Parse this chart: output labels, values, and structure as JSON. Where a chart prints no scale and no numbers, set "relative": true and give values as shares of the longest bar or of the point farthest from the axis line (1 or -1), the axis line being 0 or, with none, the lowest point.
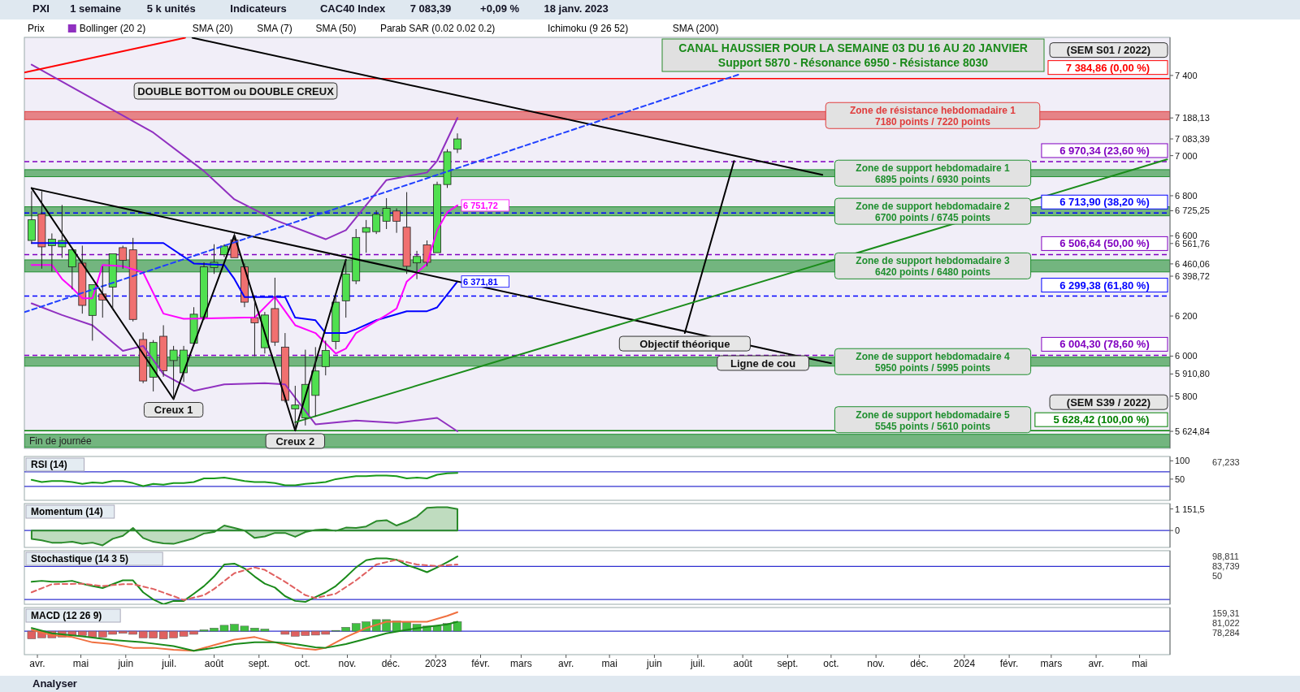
{
  "chart_data": [
    {
      "type": "candlestick",
      "title": "CANAL HAUSSIER POUR LA SEMAINE 03 DU 16 AU 20 JANVIER",
      "subtitle": "Support 5870 - Résonance 6950 - Résistance 8030",
      "legend": "top left",
      "tick_labels": "y",
      "x": [
        "2022-03-28",
        "2022-04-04",
        "2022-04-11",
        "2022-04-18",
        "2022-04-25",
        "2022-05-02",
        "2022-05-09",
        "2022-05-16",
        "2022-05-23",
        "2022-05-30",
        "2022-06-06",
        "2022-06-13",
        "2022-06-20",
        "2022-06-27",
        "2022-07-04",
        "2022-07-11",
        "2022-07-18",
        "2022-07-25",
        "2022-08-01",
        "2022-08-08",
        "2022-08-15",
        "2022-08-22",
        "2022-08-29",
        "2022-09-05",
        "2022-09-12",
        "2022-09-19",
        "2022-09-26",
        "2022-10-03",
        "2022-10-10",
        "2022-10-17",
        "2022-10-24",
        "2022-10-31",
        "2022-11-07",
        "2022-11-14",
        "2022-11-21",
        "2022-11-28",
        "2022-12-05",
        "2022-12-12",
        "2022-12-19",
        "2022-12-26",
        "2023-01-02",
        "2023-01-09",
        "2023-01-16"
      ],
      "ohlc": [
        [
          6577,
          6823,
          6560,
          6680
        ],
        [
          6708,
          6823,
          6436,
          6545
        ],
        [
          6551,
          6612,
          6423,
          6583
        ],
        [
          6545,
          6754,
          6490,
          6577
        ],
        [
          6445,
          6538,
          6333,
          6530
        ],
        [
          6464,
          6551,
          6212,
          6253
        ],
        [
          6203,
          6359,
          6077,
          6356
        ],
        [
          6310,
          6449,
          6192,
          6280
        ],
        [
          6344,
          6515,
          6231,
          6510
        ],
        [
          6541,
          6551,
          6436,
          6478
        ],
        [
          6530,
          6590,
          6173,
          6183
        ],
        [
          6083,
          6118,
          5865,
          5876
        ],
        [
          5895,
          6080,
          5824,
          6068
        ],
        [
          6099,
          6154,
          5897,
          5927
        ],
        [
          5978,
          6051,
          5782,
          6030
        ],
        [
          5917,
          6051,
          5872,
          6030
        ],
        [
          6064,
          6244,
          6058,
          6209
        ],
        [
          6195,
          6468,
          6180,
          6445
        ],
        [
          6442,
          6558,
          6410,
          6468
        ],
        [
          6506,
          6558,
          6494,
          6549
        ],
        [
          6580,
          6615,
          6487,
          6491
        ],
        [
          6445,
          6462,
          6244,
          6269
        ],
        [
          6192,
          6295,
          6000,
          6166
        ],
        [
          6042,
          6220,
          6013,
          6205
        ],
        [
          6237,
          6391,
          6051,
          6070
        ],
        [
          6045,
          6115,
          5769,
          5779
        ],
        [
          5737,
          5852,
          5628,
          5756
        ],
        [
          5692,
          6032,
          5654,
          5859
        ],
        [
          5804,
          6045,
          5699,
          5926
        ],
        [
          5948,
          6077,
          5904,
          6028
        ],
        [
          6073,
          6295,
          6034,
          6269
        ],
        [
          6276,
          6481,
          6192,
          6410
        ],
        [
          6375,
          6634,
          6359,
          6592
        ],
        [
          6618,
          6679,
          6516,
          6641
        ],
        [
          6621,
          6727,
          6609,
          6707
        ],
        [
          6673,
          6788,
          6634,
          6737
        ],
        [
          6724,
          6737,
          6615,
          6673
        ],
        [
          6643,
          6818,
          6410,
          6448
        ],
        [
          6465,
          6525,
          6384,
          6497
        ],
        [
          6555,
          6577,
          6448,
          6468
        ],
        [
          6516,
          6870,
          6513,
          6856
        ],
        [
          6856,
          7032,
          6839,
          7019
        ],
        [
          7032,
          7111,
          7013,
          7083.39
        ]
      ],
      "xlim": [
        "2022-03-23",
        "2024-05-22"
      ],
      "ylim": [
        5540,
        7590
      ],
      "yticks": [
        {
          "value": 5624.84,
          "label": "5 624,84"
        },
        {
          "value": 5800,
          "label": "5 800"
        },
        {
          "value": 5910.8,
          "label": "5 910,80"
        },
        {
          "value": 6000,
          "label": "6 000"
        },
        {
          "value": 6200,
          "label": "6 200"
        },
        {
          "value": 6398.72,
          "label": "6 398,72"
        },
        {
          "value": 6460.06,
          "label": "6 460,06"
        },
        {
          "value": 6561.76,
          "label": "6 561,76"
        },
        {
          "value": 6600,
          "label": "6 600"
        },
        {
          "value": 6725.25,
          "label": "6 725,25"
        },
        {
          "value": 6800,
          "label": "6 800"
        },
        {
          "value": 7000,
          "label": "7 000"
        },
        {
          "value": 7083.39,
          "label": "7 083,39"
        },
        {
          "value": 7188.13,
          "label": "7 188,13"
        },
        {
          "value": 7400,
          "label": "7 400"
        }
      ],
      "series": [
        {
          "type": "line",
          "name": "Bollinger (20 2)",
          "color": "#9030c0",
          "x": [
            "2022-03-28",
            "2022-06-20",
            "2022-07-25",
            "2022-08-15",
            "2022-09-12",
            "2022-10-17",
            "2022-10-31",
            "2022-11-28",
            "2022-12-26",
            "2023-01-02",
            "2023-01-16"
          ],
          "values": [
            7454,
            7115,
            6923,
            6782,
            6679,
            6583,
            6628,
            6878,
            6916,
            6974,
            7188
          ]
        },
        {
          "type": "line",
          "color": "#9030c0",
          "x": [
            "2022-03-28",
            "2022-04-18",
            "2022-05-09",
            "2022-05-30",
            "2022-06-13",
            "2022-06-27",
            "2022-07-18",
            "2022-08-08",
            "2022-09-05",
            "2022-09-19",
            "2022-10-10",
            "2022-11-07",
            "2022-12-05",
            "2023-01-02",
            "2023-01-16"
          ],
          "values": [
            6263,
            6205,
            6154,
            6026,
            6051,
            5910,
            5827,
            5859,
            5865,
            5859,
            5660,
            5679,
            5667,
            5692,
            5625
          ]
        },
        {
          "type": "line",
          "color": "#0000ff",
          "x": [
            "2022-03-28",
            "2022-06-27",
            "2022-07-18",
            "2022-08-08",
            "2022-08-15",
            "2022-08-22",
            "2022-09-19",
            "2022-09-26",
            "2022-10-10",
            "2022-10-17",
            "2022-10-31",
            "2022-11-07",
            "2022-11-21",
            "2022-12-12",
            "2022-12-26",
            "2023-01-02",
            "2023-01-16"
          ],
          "values": [
            6564,
            6564,
            6462,
            6455,
            6385,
            6295,
            6295,
            6192,
            6179,
            6115,
            6115,
            6134,
            6179,
            6224,
            6224,
            6243,
            6371.81
          ],
          "value_labels": [
            null,
            null,
            null,
            null,
            null,
            null,
            null,
            null,
            null,
            null,
            null,
            null,
            null,
            null,
            null,
            null,
            "6 371,81"
          ]
        },
        {
          "type": "line",
          "color": "#ff00ff",
          "x": [
            "2022-03-28",
            "2022-04-11",
            "2022-04-18",
            "2022-04-25",
            "2022-05-02",
            "2022-05-09",
            "2022-05-16",
            "2022-05-30",
            "2022-06-13",
            "2022-06-27",
            "2022-07-11",
            "2022-08-22",
            "2022-08-29",
            "2022-09-12",
            "2022-09-26",
            "2022-10-10",
            "2022-10-24",
            "2022-10-31",
            "2022-11-07",
            "2022-11-28",
            "2022-12-05",
            "2022-12-12",
            "2022-12-26",
            "2023-01-02",
            "2023-01-09",
            "2023-01-16"
          ],
          "values": [
            6455,
            6455,
            6385,
            6340,
            6289,
            6289,
            6455,
            6449,
            6417,
            6212,
            6186,
            6192,
            6192,
            6295,
            6154,
            6115,
            6013,
            6038,
            6115,
            6205,
            6237,
            6372,
            6461,
            6628,
            6718,
            6751.72
          ],
          "value_labels": [
            null,
            null,
            null,
            null,
            null,
            null,
            null,
            null,
            null,
            null,
            null,
            null,
            null,
            null,
            null,
            null,
            null,
            null,
            null,
            null,
            null,
            null,
            null,
            null,
            null,
            "6 751,72"
          ]
        },
        {
          "type": "line",
          "color": "#000000",
          "x": [
            "2022-03-28",
            "2022-07-04",
            "2022-08-15",
            "2022-09-26",
            "2022-10-31"
          ],
          "values": [
            6838,
            5785,
            6603,
            5628,
            6481
          ]
        },
        {
          "type": "line",
          "color": "#000000",
          "x": [
            "2022-03-28",
            "2023-10-01"
          ],
          "values": [
            6838,
            5964
          ]
        },
        {
          "type": "line",
          "color": "#000000",
          "x": [
            "2022-07-17",
            "2023-09-25"
          ],
          "values": [
            7588,
            6904
          ]
        },
        {
          "type": "line",
          "color": "#000000",
          "x": [
            "2023-06-22",
            "2023-07-26"
          ],
          "values": [
            6115,
            6973
          ]
        },
        {
          "type": "line",
          "color": "#1a8c1a",
          "x": [
            "2022-09-26",
            "2024-05-20"
          ],
          "values": [
            5670,
            6981
          ]
        },
        {
          "type": "line",
          "color": "#2040ff",
          "line_style": "dashed",
          "x": [
            "2022-03-23",
            "2023-07-29"
          ],
          "values": [
            6219,
            7404
          ]
        },
        {
          "type": "line",
          "color": "#ff0000",
          "x": [
            "2022-03-23",
            "2022-07-12"
          ],
          "values": [
            7415,
            7588
          ]
        }
      ],
      "bands": [
        {
          "axis": "y",
          "from": 7180,
          "to": 7220,
          "label": "Zone de résistance hebdomadaire 1\n7180 points / 7220 points",
          "color": "#e03c3c"
        },
        {
          "axis": "y",
          "from": 6895,
          "to": 6930,
          "label": "Zone de support hebdomadaire 1\n6895 points / 6930 points",
          "color": "#1f8f2f"
        },
        {
          "axis": "y",
          "from": 6700,
          "to": 6745,
          "label": "Zone de support hebdomadaire 2\n6700 points / 6745 points",
          "color": "#1f8f2f"
        },
        {
          "axis": "y",
          "from": 6420,
          "to": 6480,
          "label": "Zone de support hebdomadaire 3\n6420 points / 6480 points",
          "color": "#1f8f2f"
        },
        {
          "axis": "y",
          "from": 5950,
          "to": 5995,
          "label": "Zone de support hebdomadaire 4\n5950 points / 5995 points",
          "color": "#1f8f2f"
        },
        {
          "axis": "y",
          "from": 5545,
          "to": 5610,
          "label": "Zone de support hebdomadaire 5\n5545 points / 5610 points",
          "color": "#1f8f2f"
        }
      ],
      "ref_lines": [
        {
          "axis": "y",
          "value": 7384.86,
          "label": "7 384,86 (0,00 %)",
          "color": "#ff0000",
          "line_style": "solid"
        },
        {
          "axis": "y",
          "value": 6970.34,
          "label": "6 970,34 (23,60 %)",
          "color": "#8000c0",
          "line_style": "dashed"
        },
        {
          "axis": "y",
          "value": 6713.9,
          "label": "6 713,90 (38,20 %)",
          "color": "#0000ff",
          "line_style": "dashed"
        },
        {
          "axis": "y",
          "value": 6506.64,
          "label": "6 506,64 (50,00 %)",
          "color": "#8000c0",
          "line_style": "dashed"
        },
        {
          "axis": "y",
          "value": 6299.38,
          "label": "6 299,38 (61,80 %)",
          "color": "#0000ff",
          "line_style": "dashed"
        },
        {
          "axis": "y",
          "value": 6004.3,
          "label": "6 004,30 (78,60 %)",
          "color": "#8000c0",
          "line_style": "dashed"
        },
        {
          "axis": "y",
          "value": 5628.42,
          "label": "5 628,42 (100,00 %)",
          "color": "#008000",
          "line_style": "solid"
        }
      ],
      "annotations": [
        "Prix",
        "SMA (20)",
        "SMA (7)",
        "SMA (50)",
        "Parab SAR (0.02 0.02 0.2)",
        "Ichimoku (9 26 52)",
        "SMA (200)",
        {
          "text": "Creux 1",
          "x": "2022-07-04",
          "y": 5785
        },
        {
          "text": "Creux 2",
          "x": "2022-09-26",
          "y": 5628
        },
        {
          "text": "Objectif théorique",
          "x": "2023-06-22",
          "y": 6115
        },
        {
          "text": "Ligne de cou",
          "x": "2023-08-15",
          "y": 6018
        },
        {
          "text": "(SEM S01 / 2022)",
          "x": "2024-05-20",
          "y": 7384.86
        },
        {
          "text": "(SEM S39 / 2022)",
          "x": "2024-05-20",
          "y": 5628.42
        },
        "DOUBLE BOTTOM ou DOUBLE CREUX",
        "Fin de journée"
      ]
    },
    {
      "type": "line",
      "title": "RSI (14)",
      "tick_labels": "y",
      "x": [
        "2022-03-28",
        "2022-04-04",
        "2022-04-11",
        "2022-04-18",
        "2022-04-25",
        "2022-05-02",
        "2022-05-09",
        "2022-05-16",
        "2022-05-23",
        "2022-05-30",
        "2022-06-06",
        "2022-06-13",
        "2022-06-20",
        "2022-06-27",
        "2022-07-04",
        "2022-07-11",
        "2022-07-18",
        "2022-07-25",
        "2022-08-01",
        "2022-08-08",
        "2022-08-15",
        "2022-08-22",
        "2022-08-29",
        "2022-09-05",
        "2022-09-12",
        "2022-09-19",
        "2022-09-26",
        "2022-10-03",
        "2022-10-10",
        "2022-10-17",
        "2022-10-24",
        "2022-10-31",
        "2022-11-07",
        "2022-11-14",
        "2022-11-21",
        "2022-11-28",
        "2022-12-05",
        "2022-12-12",
        "2022-12-19",
        "2022-12-26",
        "2023-01-02",
        "2023-01-09",
        "2023-01-16"
      ],
      "xlim": [
        "2022-03-23",
        "2024-05-22"
      ],
      "ylim": [
        -8,
        112
      ],
      "yticks": [
        50,
        100
      ],
      "annotations": [
        "67,233"
      ],
      "series": [
        {
          "color": "#1a9a1a",
          "values": [
            48,
            42,
            45,
            45,
            42,
            37,
            41,
            39,
            45,
            45,
            39,
            31,
            37,
            35,
            39,
            39,
            42,
            52,
            52,
            54,
            50,
            45,
            42,
            42,
            39,
            33,
            33,
            37,
            39,
            42,
            50,
            54,
            58,
            58,
            60,
            60,
            58,
            52,
            54,
            52,
            62,
            66,
            67.2
          ]
        }
      ],
      "ref_lines": [
        {
          "axis": "y",
          "value": 70,
          "color": "#3030d0"
        },
        {
          "axis": "y",
          "value": 30,
          "color": "#3030d0"
        }
      ]
    },
    {
      "type": "area",
      "title": "Momentum (14)",
      "tick_labels": "y",
      "x": [
        "2022-03-28",
        "2022-04-04",
        "2022-04-11",
        "2022-04-18",
        "2022-04-25",
        "2022-05-02",
        "2022-05-09",
        "2022-05-16",
        "2022-05-23",
        "2022-05-30",
        "2022-06-06",
        "2022-06-13",
        "2022-06-20",
        "2022-06-27",
        "2022-07-04",
        "2022-07-11",
        "2022-07-18",
        "2022-07-25",
        "2022-08-01",
        "2022-08-08",
        "2022-08-15",
        "2022-08-22",
        "2022-08-29",
        "2022-09-05",
        "2022-09-12",
        "2022-09-19",
        "2022-09-26",
        "2022-10-03",
        "2022-10-10",
        "2022-10-17",
        "2022-10-24",
        "2022-10-31",
        "2022-11-07",
        "2022-11-14",
        "2022-11-21",
        "2022-11-28",
        "2022-12-05",
        "2022-12-12",
        "2022-12-19",
        "2022-12-26",
        "2023-01-02",
        "2023-01-09",
        "2023-01-16"
      ],
      "xlim": [
        "2022-03-23",
        "2024-05-22"
      ],
      "ylim": [
        -905,
        1440
      ],
      "yticks": [
        0,
        {
          "value": 1151.5,
          "label": "1 151,5"
        }
      ],
      "series": [
        {
          "color": "#2a8a2a",
          "values": [
            -445,
            -525,
            -650,
            -650,
            -604,
            -714,
            -650,
            -794,
            -445,
            -287,
            139,
            -399,
            -604,
            -683,
            -714,
            -572,
            -414,
            -161,
            -82,
            267,
            139,
            -4,
            -399,
            -319,
            -130,
            -130,
            -335,
            -82,
            29,
            60,
            -20,
            155,
            139,
            218,
            503,
            551,
            267,
            472,
            740,
            1213,
            1246,
            1246,
            1151.5
          ]
        }
      ],
      "ref_lines": [
        {
          "axis": "y",
          "value": 0,
          "color": "#3030d0"
        }
      ]
    },
    {
      "type": "line",
      "title": "Stochastique (14 3 5)",
      "relative": true,
      "annotations": [
        "98,811",
        "83,739",
        "50"
      ],
      "x": [
        "2022-03-28",
        "2022-04-04",
        "2022-04-11",
        "2022-04-18",
        "2022-04-25",
        "2022-05-02",
        "2022-05-09",
        "2022-05-16",
        "2022-05-23",
        "2022-05-30",
        "2022-06-06",
        "2022-06-13",
        "2022-06-20",
        "2022-06-27",
        "2022-07-04",
        "2022-07-11",
        "2022-07-18",
        "2022-07-25",
        "2022-08-01",
        "2022-08-08",
        "2022-08-15",
        "2022-08-22",
        "2022-08-29",
        "2022-09-05",
        "2022-09-12",
        "2022-09-19",
        "2022-09-26",
        "2022-10-03",
        "2022-10-10",
        "2022-10-17",
        "2022-10-24",
        "2022-10-31",
        "2022-11-07",
        "2022-11-14",
        "2022-11-21",
        "2022-11-28",
        "2022-12-05",
        "2022-12-12",
        "2022-12-19",
        "2022-12-26",
        "2023-01-02",
        "2023-01-09",
        "2023-01-16"
      ],
      "xlim": [
        "2022-03-23",
        "2024-05-22"
      ],
      "series": [
        {
          "color": "#1a8a1a",
          "values": [
            0.47,
            0.49,
            0.47,
            0.47,
            0.49,
            0.43,
            0.38,
            0.34,
            0.42,
            0.5,
            0.5,
            0.25,
            0.1,
            0,
            0.07,
            0.07,
            0.22,
            0.38,
            0.58,
            0.83,
            0.85,
            0.75,
            0.58,
            0.43,
            0.35,
            0.17,
            0.07,
            0.05,
            0.15,
            0.25,
            0.38,
            0.57,
            0.77,
            0.92,
            0.96,
            0.96,
            0.93,
            0.82,
            0.75,
            0.67,
            0.77,
            0.88,
            1
          ]
        },
        {
          "color": "#e06060",
          "line_style": "dashed",
          "x": [
            "2022-03-28",
            "2022-04-11",
            "2022-05-02",
            "2022-05-16",
            "2022-05-30",
            "2022-06-06",
            "2022-06-20",
            "2022-07-04",
            "2022-07-11",
            "2022-07-25",
            "2022-08-01",
            "2022-08-15",
            "2022-08-29",
            "2022-09-05",
            "2022-09-19",
            "2022-10-03",
            "2022-10-10",
            "2022-10-24",
            "2022-11-07",
            "2022-11-21",
            "2022-12-05",
            "2022-12-19",
            "2023-01-02",
            "2023-01-16"
          ],
          "values": [
            0.25,
            0.42,
            0.43,
            0.38,
            0.42,
            0.42,
            0.32,
            0.17,
            0.09,
            0.19,
            0.32,
            0.65,
            0.77,
            0.72,
            0.47,
            0.19,
            0.13,
            0.22,
            0.5,
            0.83,
            0.93,
            0.83,
            0.8,
            0.83
          ]
        }
      ],
      "ref_lines": [
        {
          "axis": "y",
          "value": 0.79,
          "color": "#3030d0"
        },
        {
          "axis": "y",
          "value": 0.1,
          "color": "#3030d0"
        }
      ]
    },
    {
      "type": "bar",
      "title": "MACD (12 26 9)",
      "relative": true,
      "tick_labels": "x",
      "annotations": [
        "159,31",
        "81,022",
        "78,284"
      ],
      "x": [
        "2022-03-28",
        "2022-04-04",
        "2022-04-11",
        "2022-04-18",
        "2022-04-25",
        "2022-05-02",
        "2022-05-09",
        "2022-05-16",
        "2022-05-23",
        "2022-05-30",
        "2022-06-06",
        "2022-06-13",
        "2022-06-20",
        "2022-06-27",
        "2022-07-04",
        "2022-07-11",
        "2022-07-18",
        "2022-07-25",
        "2022-08-01",
        "2022-08-08",
        "2022-08-15",
        "2022-08-22",
        "2022-08-29",
        "2022-09-05",
        "2022-09-12",
        "2022-09-19",
        "2022-09-26",
        "2022-10-03",
        "2022-10-10",
        "2022-10-17",
        "2022-10-24",
        "2022-10-31",
        "2022-11-07",
        "2022-11-14",
        "2022-11-21",
        "2022-11-28",
        "2022-12-05",
        "2022-12-12",
        "2022-12-19",
        "2022-12-26",
        "2023-01-02",
        "2023-01-09",
        "2023-01-16"
      ],
      "xlim": [
        "2022-03-23",
        "2024-05-22"
      ],
      "xticks": [
        {
          "value": "2022-04-01",
          "label": "avr."
        },
        {
          "value": "2022-05-01",
          "label": "mai"
        },
        {
          "value": "2022-06-01",
          "label": "juin"
        },
        {
          "value": "2022-07-01",
          "label": "juil."
        },
        {
          "value": "2022-08-01",
          "label": "août"
        },
        {
          "value": "2022-09-01",
          "label": "sept."
        },
        {
          "value": "2022-10-01",
          "label": "oct."
        },
        {
          "value": "2022-11-01",
          "label": "nov."
        },
        {
          "value": "2022-12-01",
          "label": "déc."
        },
        {
          "value": "2023-01-01",
          "label": "2023"
        },
        {
          "value": "2023-02-01",
          "label": "févr."
        },
        {
          "value": "2023-03-01",
          "label": "mars"
        },
        {
          "value": "2023-04-01",
          "label": "avr."
        },
        {
          "value": "2023-05-01",
          "label": "mai"
        },
        {
          "value": "2023-06-01",
          "label": "juin"
        },
        {
          "value": "2023-07-01",
          "label": "juil."
        },
        {
          "value": "2023-08-01",
          "label": "août"
        },
        {
          "value": "2023-09-01",
          "label": "sept."
        },
        {
          "value": "2023-10-01",
          "label": "oct."
        },
        {
          "value": "2023-11-01",
          "label": "nov."
        },
        {
          "value": "2023-12-01",
          "label": "déc."
        },
        {
          "value": "2024-01-01",
          "label": "2024"
        },
        {
          "value": "2024-02-01",
          "label": "févr."
        },
        {
          "value": "2024-03-01",
          "label": "mars"
        },
        {
          "value": "2024-04-01",
          "label": "avr."
        },
        {
          "value": "2024-05-01",
          "label": "mai"
        }
      ],
      "series": [
        {
          "colors": [
            "#e06060",
            "#e06060",
            "#e06060",
            "#e06060",
            "#e06060",
            "#e06060",
            "#e06060",
            "#e06060",
            "#e06060",
            "#e06060",
            "#e06060",
            "#e06060",
            "#e06060",
            "#e06060",
            "#e06060",
            "#e06060",
            "#e06060",
            "#40c040",
            "#40c040",
            "#40c040",
            "#40c040",
            "#40c040",
            "#40c040",
            "#40c040",
            "#40c040",
            "#e06060",
            "#e06060",
            "#e06060",
            "#e06060",
            "#e06060",
            "#40c040",
            "#40c040",
            "#40c040",
            "#40c040",
            "#40c040",
            "#40c040",
            "#40c040",
            "#40c040",
            "#40c040",
            "#40c040",
            "#40c040",
            "#40c040",
            "#40c040"
          ],
          "values": [
            -0.39,
            -0.34,
            -0.34,
            -0.3,
            -0.2,
            -0.22,
            -0.3,
            -0.3,
            -0.16,
            -0.11,
            -0.16,
            -0.34,
            -0.35,
            -0.39,
            -0.34,
            -0.26,
            -0.16,
            0.07,
            0.16,
            0.3,
            0.35,
            0.26,
            0.16,
            0.11,
            0,
            -0.16,
            -0.26,
            -0.22,
            -0.2,
            -0.16,
            0.04,
            0.2,
            0.39,
            0.48,
            0.59,
            0.59,
            0.52,
            0.45,
            0.35,
            0.26,
            0.26,
            0.39,
            0.49
          ]
        },
        {
          "type": "line",
          "color": "#f07040",
          "x": [
            "2022-03-28",
            "2022-04-11",
            "2022-04-25",
            "2022-05-09",
            "2022-05-23",
            "2022-06-06",
            "2022-06-20",
            "2022-07-04",
            "2022-07-18",
            "2022-08-01",
            "2022-08-15",
            "2022-08-29",
            "2022-09-12",
            "2022-09-26",
            "2022-10-10",
            "2022-10-17",
            "2022-10-31",
            "2022-11-14",
            "2022-11-28",
            "2022-12-12",
            "2022-12-26",
            "2023-01-09",
            "2023-01-16"
          ],
          "values": [
            0.07,
            -0.2,
            -0.3,
            -0.57,
            -0.66,
            -0.85,
            -0.85,
            -0.95,
            -1,
            -0.71,
            -0.43,
            -0.3,
            -0.57,
            -0.85,
            -0.95,
            -0.85,
            -0.3,
            0.16,
            0.48,
            0.48,
            0.48,
            0.78,
            0.97
          ]
        },
        {
          "type": "line",
          "color": "#1a8a1a",
          "x": [
            "2022-03-28",
            "2022-04-11",
            "2022-05-02",
            "2022-05-23",
            "2022-06-13",
            "2022-07-04",
            "2022-07-18",
            "2022-08-01",
            "2022-08-15",
            "2022-08-29",
            "2022-09-12",
            "2022-09-26",
            "2022-10-10",
            "2022-10-17",
            "2022-10-31",
            "2022-11-14",
            "2022-11-28",
            "2022-12-12",
            "2022-12-26",
            "2023-01-09",
            "2023-01-16"
          ],
          "values": [
            0.16,
            -0.11,
            -0.26,
            -0.45,
            -0.57,
            -0.76,
            -1,
            -0.85,
            -0.66,
            -0.57,
            -0.57,
            -0.66,
            -0.82,
            -0.85,
            -0.66,
            -0.39,
            -0.11,
            0.07,
            0.22,
            0.35,
            0.48
          ]
        }
      ],
      "ref_lines": [
        {
          "axis": "y",
          "value": 0,
          "color": "#3030d0"
        }
      ]
    },
    {
      "type": "other",
      "annotations": [
        "PXI",
        "1 semaine",
        "5 k unités",
        "Indicateurs",
        "CAC40 Index",
        "7 083,39",
        "+0,09 %",
        "18 janv. 2023"
      ]
    },
    {
      "type": "other",
      "annotations": [
        "Analyser"
      ]
    }
  ]
}
